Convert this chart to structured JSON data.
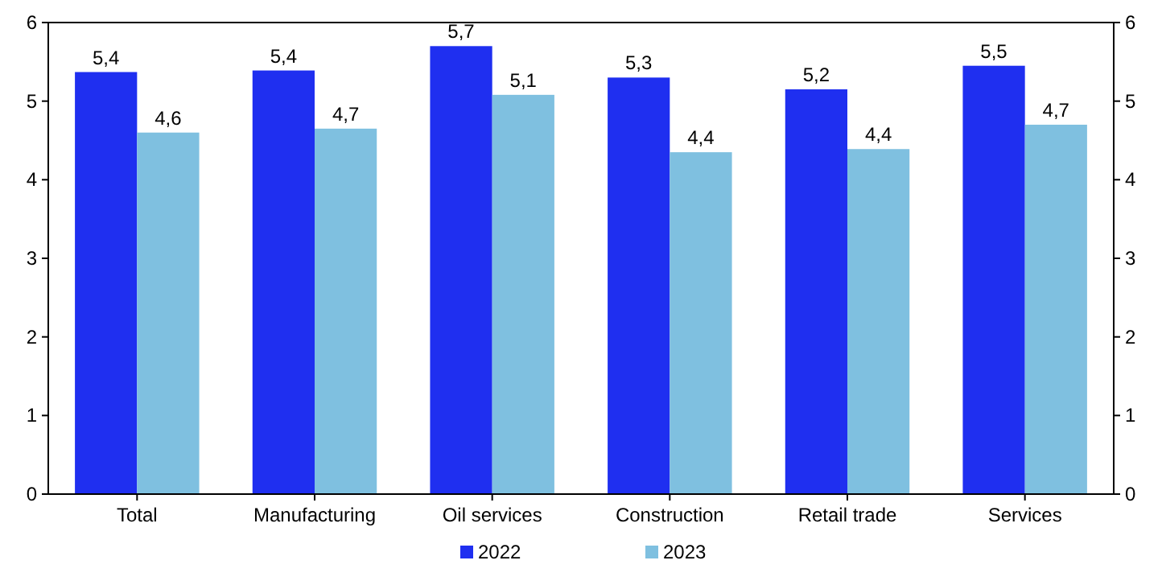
{
  "chart_data": {
    "type": "bar",
    "categories": [
      "Total",
      "Manufacturing",
      "Oil services",
      "Construction",
      "Retail trade",
      "Services"
    ],
    "series": [
      {
        "name": "2022",
        "color": "#1f2ff0",
        "values": [
          5.37,
          5.39,
          5.7,
          5.3,
          5.15,
          5.45
        ],
        "value_labels": [
          "5,4",
          "5,4",
          "5,7",
          "5,3",
          "5,2",
          "5,5"
        ]
      },
      {
        "name": "2023",
        "color": "#7fc0e0",
        "values": [
          4.6,
          4.65,
          5.08,
          4.35,
          4.39,
          4.7
        ],
        "value_labels": [
          "4,6",
          "4,7",
          "5,1",
          "4,4",
          "4,4",
          "4,7"
        ]
      }
    ],
    "ylim": [
      0,
      6
    ],
    "yticks": [
      0,
      1,
      2,
      3,
      4,
      5,
      6
    ],
    "y2lim": [
      0,
      6
    ],
    "y2ticks": [
      0,
      1,
      2,
      3,
      4,
      5,
      6
    ],
    "grid": false,
    "legend": "bottom"
  }
}
